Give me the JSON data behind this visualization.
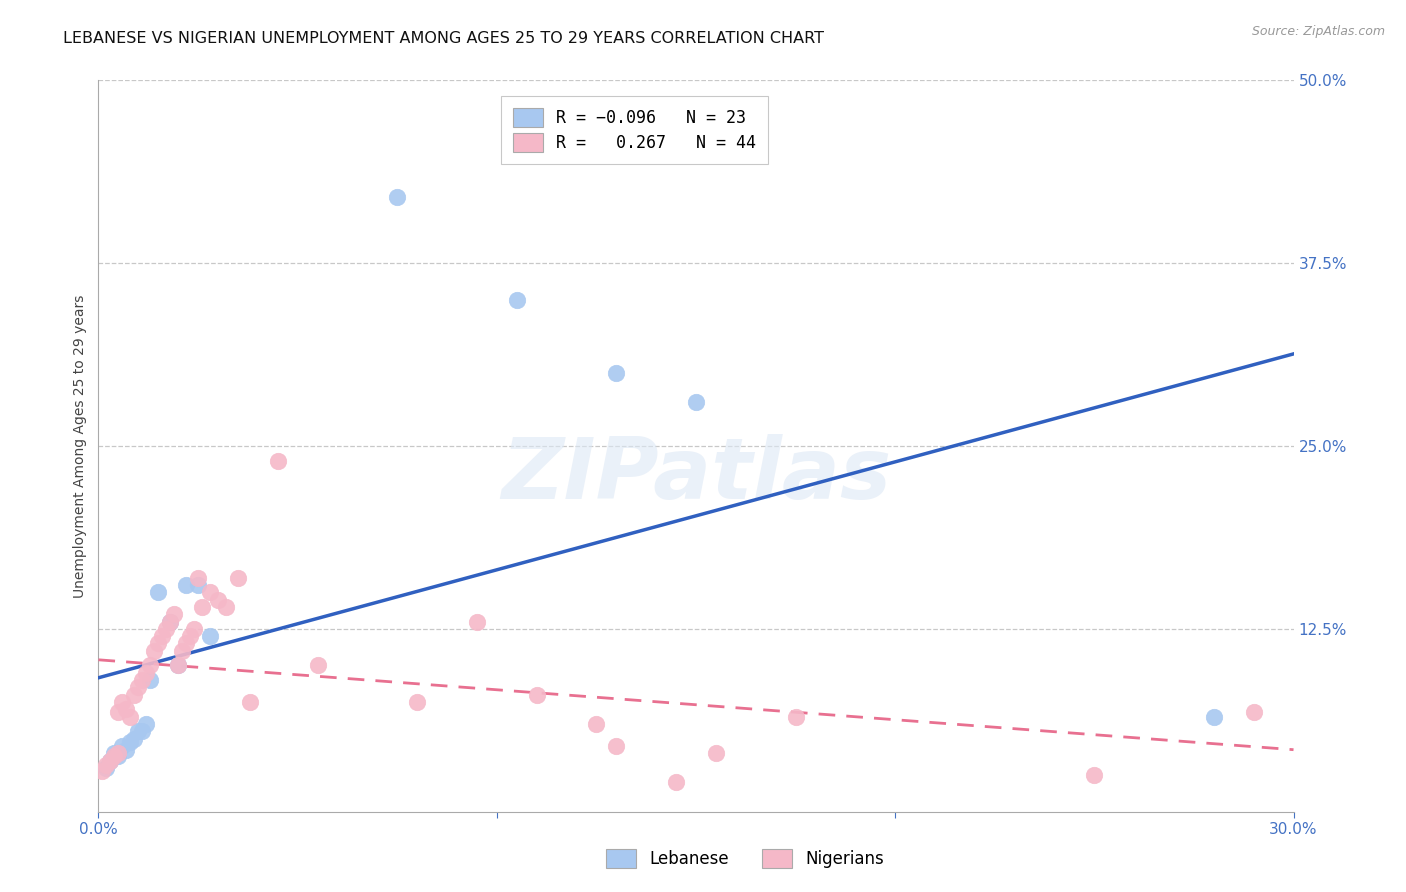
{
  "title": "LEBANESE VS NIGERIAN UNEMPLOYMENT AMONG AGES 25 TO 29 YEARS CORRELATION CHART",
  "source": "Source: ZipAtlas.com",
  "ylabel": "Unemployment Among Ages 25 to 29 years",
  "xlim": [
    0.0,
    0.3
  ],
  "ylim": [
    0.0,
    0.5
  ],
  "ytick_labels_right": [
    "50.0%",
    "37.5%",
    "25.0%",
    "12.5%"
  ],
  "ytick_vals_right": [
    0.5,
    0.375,
    0.25,
    0.125
  ],
  "watermark_text": "ZIPatlas",
  "lebanese_color": "#a8c8f0",
  "nigerian_color": "#f5b8c8",
  "lebanese_trend_color": "#3060c0",
  "nigerian_trend_color": "#e87090",
  "nigerian_trend_dashed_color": "#f0a0b8",
  "title_fontsize": 11.5,
  "axis_label_fontsize": 10,
  "tick_fontsize": 11,
  "source_fontsize": 9,
  "background_color": "#ffffff",
  "grid_color": "#c8c8c8",
  "axis_color": "#aaaaaa",
  "lebanese_x": [
    0.002,
    0.003,
    0.004,
    0.005,
    0.006,
    0.007,
    0.008,
    0.009,
    0.01,
    0.011,
    0.012,
    0.013,
    0.015,
    0.018,
    0.02,
    0.022,
    0.025,
    0.028,
    0.075,
    0.105,
    0.13,
    0.15,
    0.28
  ],
  "lebanese_y": [
    0.03,
    0.035,
    0.04,
    0.038,
    0.045,
    0.042,
    0.048,
    0.05,
    0.055,
    0.055,
    0.06,
    0.09,
    0.15,
    0.13,
    0.1,
    0.155,
    0.155,
    0.12,
    0.42,
    0.35,
    0.3,
    0.28,
    0.065
  ],
  "nigerian_x": [
    0.001,
    0.002,
    0.003,
    0.004,
    0.005,
    0.005,
    0.006,
    0.007,
    0.008,
    0.009,
    0.01,
    0.011,
    0.012,
    0.013,
    0.014,
    0.015,
    0.016,
    0.017,
    0.018,
    0.019,
    0.02,
    0.021,
    0.022,
    0.023,
    0.024,
    0.025,
    0.026,
    0.028,
    0.03,
    0.032,
    0.035,
    0.038,
    0.045,
    0.055,
    0.08,
    0.095,
    0.11,
    0.125,
    0.13,
    0.145,
    0.155,
    0.175,
    0.25,
    0.29
  ],
  "nigerian_y": [
    0.028,
    0.032,
    0.035,
    0.038,
    0.04,
    0.068,
    0.075,
    0.07,
    0.065,
    0.08,
    0.085,
    0.09,
    0.095,
    0.1,
    0.11,
    0.115,
    0.12,
    0.125,
    0.13,
    0.135,
    0.1,
    0.11,
    0.115,
    0.12,
    0.125,
    0.16,
    0.14,
    0.15,
    0.145,
    0.14,
    0.16,
    0.075,
    0.24,
    0.1,
    0.075,
    0.13,
    0.08,
    0.06,
    0.045,
    0.02,
    0.04,
    0.065,
    0.025,
    0.068
  ]
}
